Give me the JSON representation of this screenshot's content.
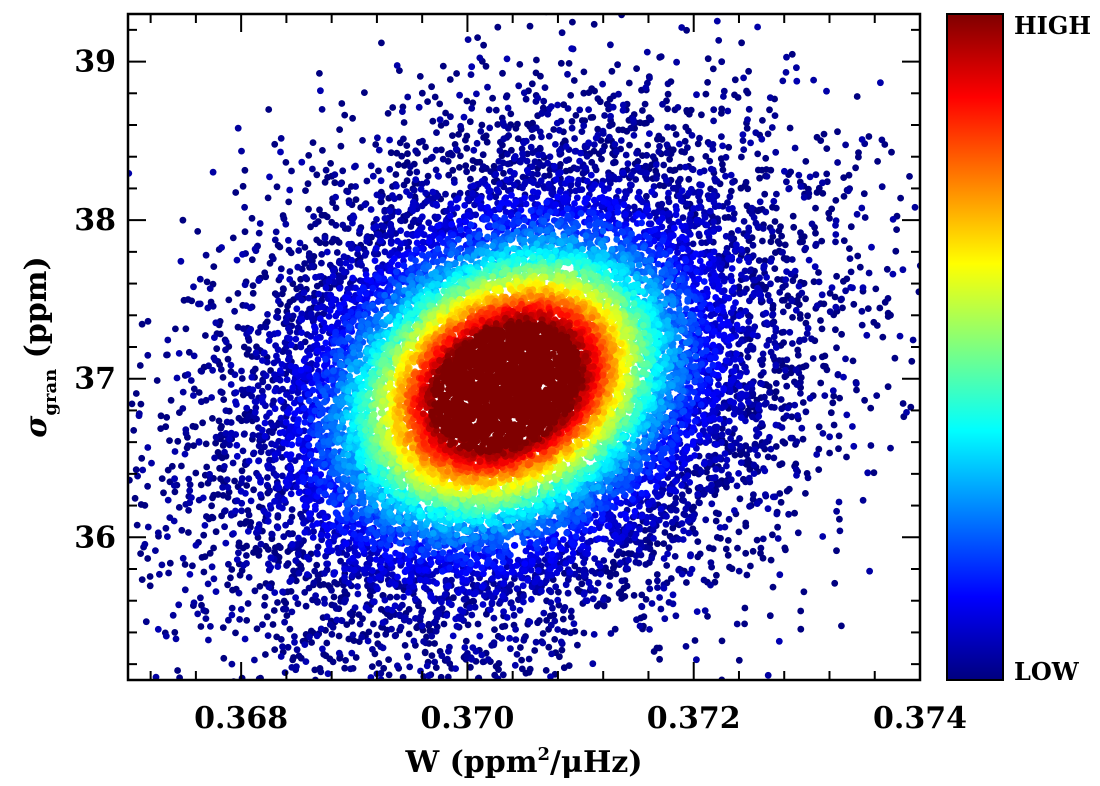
{
  "chart_data": {
    "type": "scatter",
    "title": "",
    "xlabel": {
      "prefix": "W (ppm",
      "sup": "2",
      "suffix": "/μHz)"
    },
    "ylabel": {
      "symbol": "σ",
      "sub": "gran",
      "suffix": " (ppm)"
    },
    "xlim": [
      0.367,
      0.374
    ],
    "ylim": [
      35.1,
      39.3
    ],
    "xticks": [
      {
        "value": 0.368,
        "label": "0.368"
      },
      {
        "value": 0.37,
        "label": "0.370"
      },
      {
        "value": 0.372,
        "label": "0.372"
      },
      {
        "value": 0.374,
        "label": "0.374"
      }
    ],
    "yticks": [
      {
        "value": 36,
        "label": "36"
      },
      {
        "value": 37,
        "label": "37"
      },
      {
        "value": 38,
        "label": "38"
      },
      {
        "value": 39,
        "label": "39"
      }
    ],
    "grid": false,
    "series": [
      {
        "distribution": "2d-gaussian-cloud",
        "center": {
          "x": 0.37035,
          "y": 36.95
        },
        "spread": {
          "x": 0.0012,
          "y": 0.75
        },
        "correlation": 0.25,
        "point_count": 16000,
        "color_by": "point density"
      }
    ],
    "colorbar": {
      "colormap": "jet",
      "high_label": "HIGH",
      "low_label": "LOW",
      "colors": [
        "#00007f",
        "#0000ff",
        "#007fff",
        "#00ffff",
        "#7fff7f",
        "#ffff00",
        "#ff7f00",
        "#ff0000",
        "#7f0000"
      ]
    }
  }
}
